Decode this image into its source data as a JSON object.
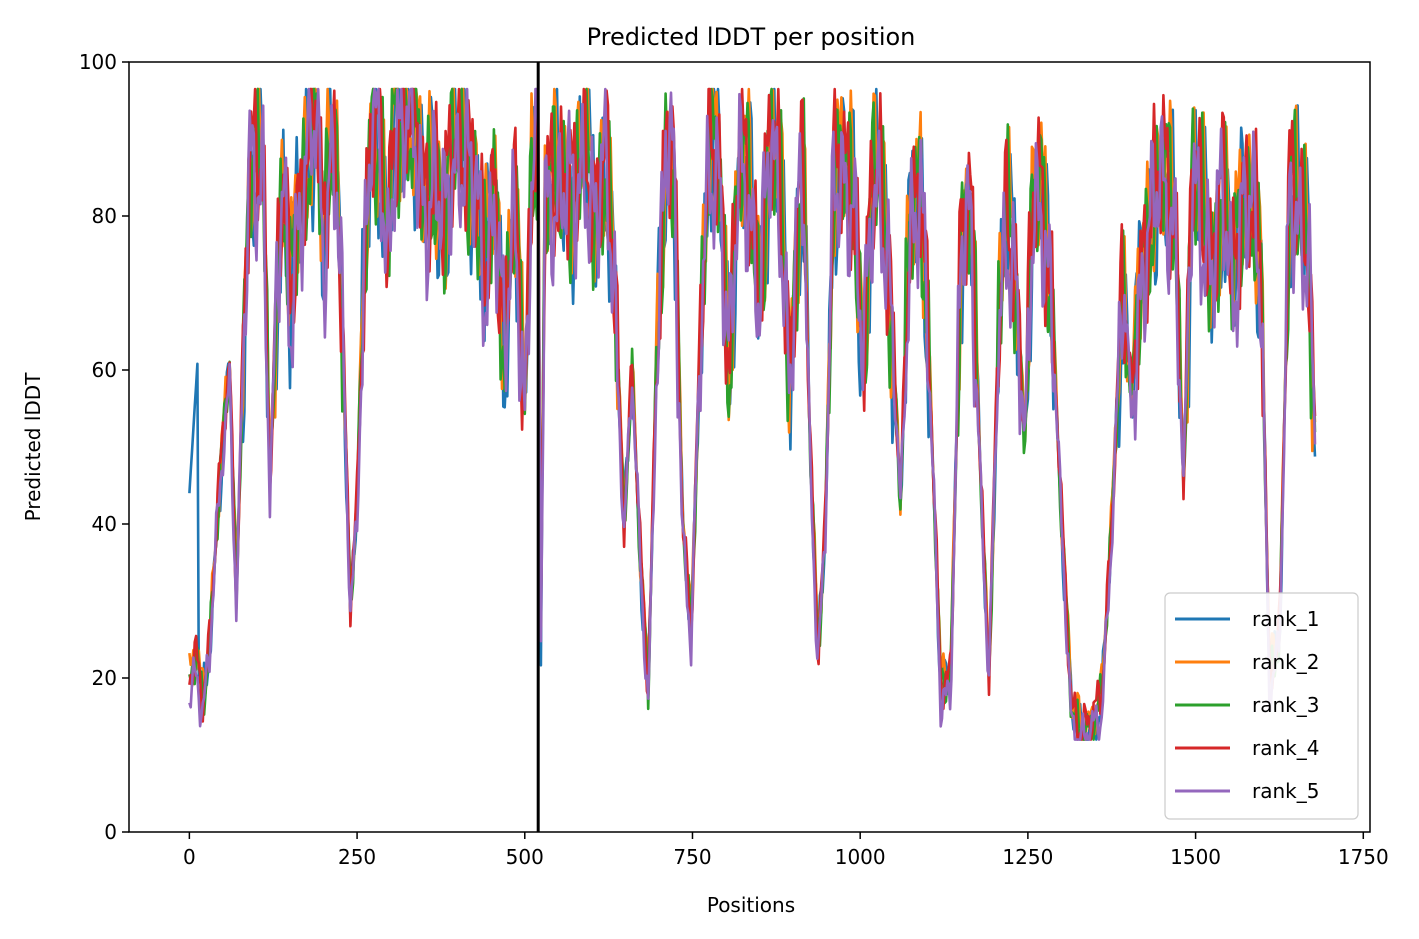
{
  "chart_data": {
    "type": "line",
    "title": "Predicted lDDT per position",
    "xlabel": "Positions",
    "ylabel": "Predicted lDDT",
    "xlim": [
      -90,
      1760
    ],
    "ylim": [
      0,
      100
    ],
    "xticks": [
      0,
      250,
      500,
      750,
      1000,
      1250,
      1500,
      1750
    ],
    "yticks": [
      0,
      20,
      40,
      60,
      80,
      100
    ],
    "vline": 520,
    "grid": false,
    "legend_position": "lower-right",
    "points": 1680,
    "base_profile": [
      [
        0,
        18
      ],
      [
        10,
        22
      ],
      [
        20,
        17
      ],
      [
        30,
        24
      ],
      [
        40,
        38
      ],
      [
        50,
        50
      ],
      [
        60,
        60
      ],
      [
        70,
        30
      ],
      [
        80,
        62
      ],
      [
        90,
        85
      ],
      [
        100,
        84
      ],
      [
        110,
        88
      ],
      [
        120,
        45
      ],
      [
        130,
        70
      ],
      [
        140,
        82
      ],
      [
        150,
        66
      ],
      [
        160,
        80
      ],
      [
        175,
        88
      ],
      [
        190,
        92
      ],
      [
        200,
        74
      ],
      [
        210,
        90
      ],
      [
        220,
        86
      ],
      [
        230,
        60
      ],
      [
        240,
        28
      ],
      [
        250,
        42
      ],
      [
        262,
        78
      ],
      [
        272,
        94
      ],
      [
        285,
        86
      ],
      [
        295,
        72
      ],
      [
        305,
        92
      ],
      [
        320,
        93
      ],
      [
        335,
        90
      ],
      [
        350,
        82
      ],
      [
        365,
        86
      ],
      [
        380,
        78
      ],
      [
        395,
        88
      ],
      [
        410,
        90
      ],
      [
        425,
        84
      ],
      [
        440,
        70
      ],
      [
        455,
        86
      ],
      [
        470,
        62
      ],
      [
        485,
        80
      ],
      [
        500,
        56
      ],
      [
        510,
        86
      ],
      [
        520,
        90
      ],
      [
        524,
        25
      ],
      [
        530,
        80
      ],
      [
        545,
        84
      ],
      [
        560,
        86
      ],
      [
        575,
        80
      ],
      [
        590,
        88
      ],
      [
        605,
        82
      ],
      [
        620,
        86
      ],
      [
        635,
        68
      ],
      [
        648,
        40
      ],
      [
        660,
        60
      ],
      [
        672,
        35
      ],
      [
        684,
        17
      ],
      [
        696,
        60
      ],
      [
        710,
        90
      ],
      [
        722,
        85
      ],
      [
        735,
        40
      ],
      [
        748,
        26
      ],
      [
        760,
        60
      ],
      [
        775,
        86
      ],
      [
        790,
        88
      ],
      [
        805,
        60
      ],
      [
        820,
        86
      ],
      [
        835,
        84
      ],
      [
        850,
        70
      ],
      [
        865,
        88
      ],
      [
        880,
        84
      ],
      [
        895,
        60
      ],
      [
        905,
        76
      ],
      [
        915,
        85
      ],
      [
        925,
        50
      ],
      [
        937,
        23
      ],
      [
        948,
        40
      ],
      [
        960,
        82
      ],
      [
        975,
        86
      ],
      [
        990,
        84
      ],
      [
        1005,
        60
      ],
      [
        1018,
        82
      ],
      [
        1030,
        86
      ],
      [
        1045,
        70
      ],
      [
        1060,
        42
      ],
      [
        1075,
        80
      ],
      [
        1090,
        86
      ],
      [
        1105,
        55
      ],
      [
        1120,
        18
      ],
      [
        1135,
        20
      ],
      [
        1150,
        75
      ],
      [
        1165,
        80
      ],
      [
        1180,
        45
      ],
      [
        1192,
        20
      ],
      [
        1205,
        60
      ],
      [
        1218,
        80
      ],
      [
        1232,
        74
      ],
      [
        1245,
        50
      ],
      [
        1258,
        80
      ],
      [
        1270,
        84
      ],
      [
        1285,
        70
      ],
      [
        1300,
        40
      ],
      [
        1315,
        15
      ],
      [
        1330,
        13
      ],
      [
        1345,
        13
      ],
      [
        1360,
        16
      ],
      [
        1375,
        40
      ],
      [
        1390,
        70
      ],
      [
        1405,
        55
      ],
      [
        1420,
        75
      ],
      [
        1440,
        82
      ],
      [
        1455,
        84
      ],
      [
        1470,
        80
      ],
      [
        1482,
        45
      ],
      [
        1495,
        84
      ],
      [
        1510,
        80
      ],
      [
        1525,
        75
      ],
      [
        1540,
        82
      ],
      [
        1555,
        70
      ],
      [
        1570,
        84
      ],
      [
        1585,
        80
      ],
      [
        1598,
        70
      ],
      [
        1610,
        20
      ],
      [
        1625,
        25
      ],
      [
        1640,
        82
      ],
      [
        1655,
        80
      ],
      [
        1668,
        78
      ],
      [
        1680,
        46
      ]
    ],
    "series": [
      {
        "name": "rank_1",
        "color": "#1f77b4",
        "offset": 0.0,
        "phase": 0.0
      },
      {
        "name": "rank_2",
        "color": "#ff7f0e",
        "offset": 1.5,
        "phase": 1.3
      },
      {
        "name": "rank_3",
        "color": "#2ca02c",
        "offset": 0.5,
        "phase": 2.1
      },
      {
        "name": "rank_4",
        "color": "#d62728",
        "offset": 1.2,
        "phase": 3.7
      },
      {
        "name": "rank_5",
        "color": "#9467bd",
        "offset": -0.8,
        "phase": 5.2
      }
    ]
  }
}
